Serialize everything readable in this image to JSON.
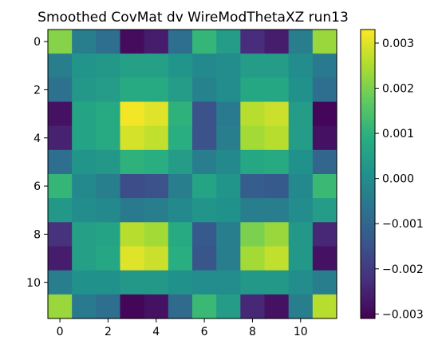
{
  "chart_data": {
    "type": "heatmap",
    "title": "Smoothed CovMat dv WireModThetaXZ run13",
    "xlabel": "",
    "ylabel": "",
    "xlim": [
      -0.5,
      11.5
    ],
    "ylim": [
      11.5,
      -0.5
    ],
    "x_ticks": [
      "0",
      "2",
      "4",
      "6",
      "8",
      "10"
    ],
    "y_ticks": [
      "0",
      "2",
      "4",
      "6",
      "8",
      "10"
    ],
    "colormap": "viridis",
    "vmin": -0.0031,
    "vmax": 0.0033,
    "colorbar_ticks": [
      "0.003",
      "0.002",
      "0.001",
      "0.000",
      "−0.001",
      "−0.002",
      "−0.003"
    ],
    "grid": false,
    "matrix": [
      [
        0.0021,
        -0.0004,
        -0.0008,
        -0.0029,
        -0.0026,
        -0.0008,
        0.0011,
        0.0004,
        -0.0023,
        -0.0026,
        -0.0004,
        0.0023
      ],
      [
        -0.0004,
        0.0002,
        0.0003,
        0.0005,
        0.0005,
        0.0002,
        -0.0001,
        0.0,
        0.0004,
        0.0004,
        0.0,
        -0.0005
      ],
      [
        -0.0007,
        0.0003,
        0.0004,
        0.0008,
        0.0008,
        0.0004,
        -0.0003,
        0.0,
        0.0007,
        0.0007,
        0.0001,
        -0.0008
      ],
      [
        -0.0028,
        0.0006,
        0.0008,
        0.0032,
        0.003,
        0.001,
        -0.0015,
        -0.0005,
        0.0026,
        0.0028,
        0.0004,
        -0.003
      ],
      [
        -0.0025,
        0.0006,
        0.0008,
        0.0029,
        0.0027,
        0.0009,
        -0.0015,
        -0.0004,
        0.0024,
        0.0026,
        0.0004,
        -0.0028
      ],
      [
        -0.0008,
        0.0002,
        0.0003,
        0.001,
        0.0009,
        0.0004,
        -0.0004,
        -0.0001,
        0.0007,
        0.0008,
        0.0001,
        -0.001
      ],
      [
        0.0011,
        -0.0001,
        -0.0004,
        -0.0016,
        -0.0015,
        -0.0004,
        0.0006,
        0.0002,
        -0.0012,
        -0.0013,
        -0.0001,
        0.0012
      ],
      [
        0.0003,
        0.0,
        -0.0001,
        -0.0005,
        -0.0004,
        -0.0001,
        0.0002,
        0.0001,
        -0.0004,
        -0.0004,
        0.0,
        0.0004
      ],
      [
        -0.0022,
        0.0005,
        0.0006,
        0.0026,
        0.0024,
        0.0008,
        -0.0013,
        -0.0004,
        0.002,
        0.0023,
        0.0003,
        -0.0024
      ],
      [
        -0.0026,
        0.0005,
        0.0007,
        0.003,
        0.0028,
        0.0009,
        -0.0014,
        -0.0004,
        0.0024,
        0.0027,
        0.0003,
        -0.0028
      ],
      [
        -0.0004,
        0.0001,
        0.0001,
        0.0003,
        0.0003,
        0.0001,
        0.0,
        0.0,
        0.0003,
        0.0003,
        0.0,
        -0.0004
      ],
      [
        0.0023,
        -0.0005,
        -0.0008,
        -0.003,
        -0.0028,
        -0.0009,
        0.0012,
        0.0004,
        -0.0024,
        -0.0028,
        -0.0004,
        0.0026
      ]
    ]
  }
}
